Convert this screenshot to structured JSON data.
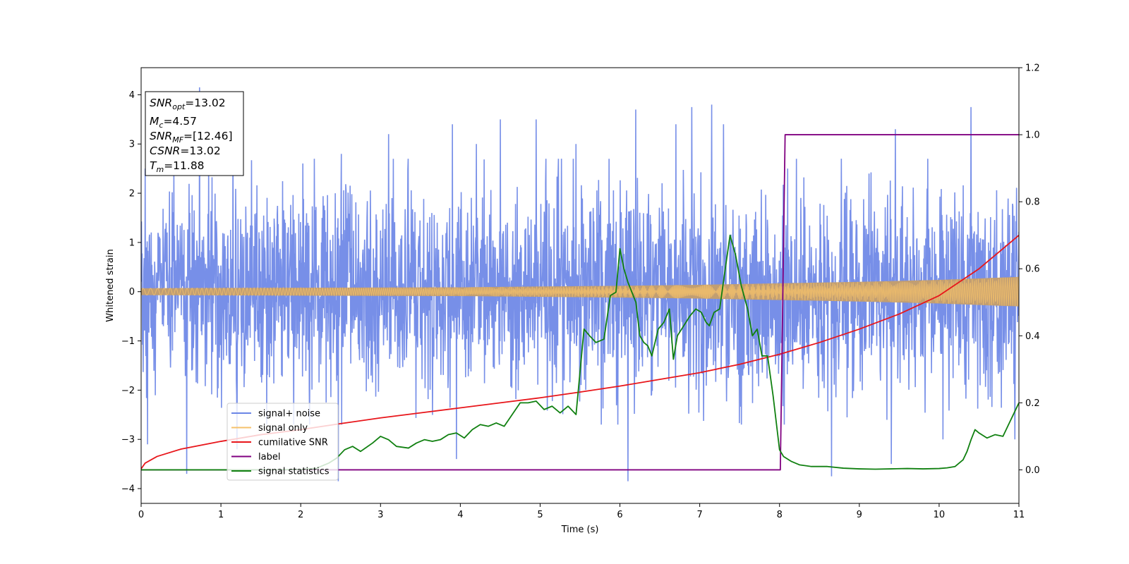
{
  "chart_data": {
    "type": "line",
    "xlabel": "Time (s)",
    "ylabel": "Whitened strain",
    "xlim": [
      0,
      11
    ],
    "ylim": [
      -4.3,
      4.55
    ],
    "y2lim": [
      -0.1,
      1.2
    ],
    "x_ticks": [
      0,
      1,
      2,
      3,
      4,
      5,
      6,
      7,
      8,
      9,
      10,
      11
    ],
    "y_ticks": [
      -4,
      -3,
      -2,
      -1,
      0,
      1,
      2,
      3,
      4
    ],
    "y2_ticks": [
      "0.0",
      "0.2",
      "0.4",
      "0.6",
      "0.8",
      "1.0",
      "1.2"
    ],
    "grid": false,
    "legend_position": "lower-left",
    "legend": [
      {
        "label": "signal+ noise",
        "color": "#6b86e6"
      },
      {
        "label": "signal only",
        "color": "#f5c26b"
      },
      {
        "label": "cumilative SNR",
        "color": "#e8161b"
      },
      {
        "label": "label",
        "color": "#800080"
      },
      {
        "label": "signal statistics",
        "color": "#108010"
      }
    ],
    "annotation": {
      "lines": [
        {
          "var": "SNR",
          "sub": "opt",
          "text": "=13.02"
        },
        {
          "var": "M",
          "sub": "c",
          "text": "=4.57"
        },
        {
          "var": "SNR",
          "sub": "MF",
          "text": "=[12.46]"
        },
        {
          "var": "CSNR",
          "sub": "",
          "text": "=13.02"
        },
        {
          "var": "T",
          "sub": "m",
          "text": "=11.88"
        }
      ]
    },
    "series": [
      {
        "name": "signal+ noise",
        "axis": "left",
        "style": "noise-band",
        "color": "#6b86e6",
        "noise_sigma": 1.0,
        "x_range": [
          0,
          11
        ],
        "spikes": [
          [
            0.05,
            2.5
          ],
          [
            0.08,
            -3.1
          ],
          [
            0.57,
            -3.7
          ],
          [
            0.73,
            4.15
          ],
          [
            1.15,
            3.1
          ],
          [
            1.2,
            -3.2
          ],
          [
            2.47,
            -3.85
          ],
          [
            2.51,
            2.8
          ],
          [
            3.1,
            3.2
          ],
          [
            3.9,
            3.4
          ],
          [
            3.95,
            -3.4
          ],
          [
            4.2,
            3.0
          ],
          [
            4.5,
            3.5
          ],
          [
            4.95,
            3.5
          ],
          [
            5.45,
            3.0
          ],
          [
            6.1,
            -3.85
          ],
          [
            6.2,
            3.7
          ],
          [
            6.7,
            3.4
          ],
          [
            6.9,
            3.75
          ],
          [
            7.15,
            3.8
          ],
          [
            7.3,
            3.4
          ],
          [
            8.1,
            2.5
          ],
          [
            8.65,
            -3.75
          ],
          [
            9.4,
            -3.5
          ],
          [
            9.45,
            3.3
          ],
          [
            10.05,
            -3.0
          ],
          [
            10.4,
            3.75
          ],
          [
            10.95,
            -3.0
          ]
        ]
      },
      {
        "name": "signal only",
        "axis": "left",
        "style": "chirp-envelope",
        "color": "#f5c26b",
        "amplitude": [
          [
            0,
            0.07
          ],
          [
            2,
            0.08
          ],
          [
            4,
            0.09
          ],
          [
            6,
            0.12
          ],
          [
            7,
            0.14
          ],
          [
            8,
            0.17
          ],
          [
            9,
            0.2
          ],
          [
            10,
            0.24
          ],
          [
            11,
            0.3
          ]
        ]
      },
      {
        "name": "cumilative SNR",
        "axis": "right",
        "style": "line",
        "color": "#e8161b",
        "x": [
          0,
          0.05,
          0.2,
          0.5,
          1,
          1.5,
          2,
          2.5,
          3,
          3.5,
          4,
          4.5,
          5,
          5.5,
          6,
          6.5,
          7,
          7.5,
          8,
          8.5,
          9,
          9.5,
          10,
          10.5,
          11
        ],
        "y": [
          0.003,
          0.02,
          0.04,
          0.062,
          0.085,
          0.105,
          0.12,
          0.138,
          0.155,
          0.17,
          0.185,
          0.2,
          0.215,
          0.232,
          0.25,
          0.27,
          0.29,
          0.315,
          0.345,
          0.38,
          0.42,
          0.465,
          0.52,
          0.6,
          0.7
        ]
      },
      {
        "name": "label",
        "axis": "right",
        "style": "line",
        "color": "#800080",
        "x": [
          0,
          8.01,
          8.07,
          11
        ],
        "y": [
          0,
          0,
          1,
          1
        ]
      },
      {
        "name": "signal statistics",
        "axis": "right",
        "style": "line",
        "color": "#108010",
        "x": [
          0,
          0.5,
          1,
          1.5,
          2,
          2.2,
          2.35,
          2.45,
          2.55,
          2.65,
          2.75,
          2.9,
          3.0,
          3.1,
          3.2,
          3.35,
          3.45,
          3.55,
          3.65,
          3.75,
          3.85,
          3.95,
          4.05,
          4.15,
          4.25,
          4.35,
          4.45,
          4.55,
          4.65,
          4.75,
          4.85,
          4.95,
          5.05,
          5.15,
          5.25,
          5.35,
          5.45,
          5.55,
          5.62,
          5.7,
          5.8,
          5.88,
          5.95,
          6.0,
          6.05,
          6.1,
          6.15,
          6.2,
          6.25,
          6.3,
          6.35,
          6.4,
          6.48,
          6.55,
          6.62,
          6.67,
          6.72,
          6.8,
          6.88,
          6.95,
          7.02,
          7.08,
          7.12,
          7.18,
          7.25,
          7.32,
          7.38,
          7.45,
          7.52,
          7.6,
          7.66,
          7.72,
          7.78,
          7.85,
          7.92,
          8.0,
          8.05,
          8.15,
          8.25,
          8.4,
          8.6,
          8.8,
          9.0,
          9.2,
          9.4,
          9.6,
          9.8,
          10.0,
          10.1,
          10.2,
          10.25,
          10.3,
          10.35,
          10.4,
          10.45,
          10.5,
          10.6,
          10.7,
          10.8,
          10.9,
          11.0
        ],
        "y": [
          0,
          0,
          0,
          0,
          0.001,
          0.005,
          0.02,
          0.035,
          0.06,
          0.07,
          0.055,
          0.08,
          0.1,
          0.09,
          0.07,
          0.065,
          0.08,
          0.09,
          0.085,
          0.09,
          0.105,
          0.11,
          0.095,
          0.12,
          0.135,
          0.13,
          0.14,
          0.13,
          0.165,
          0.2,
          0.2,
          0.205,
          0.18,
          0.19,
          0.17,
          0.19,
          0.165,
          0.42,
          0.4,
          0.38,
          0.39,
          0.52,
          0.53,
          0.66,
          0.6,
          0.56,
          0.53,
          0.5,
          0.4,
          0.38,
          0.37,
          0.34,
          0.42,
          0.44,
          0.48,
          0.33,
          0.4,
          0.43,
          0.46,
          0.48,
          0.47,
          0.44,
          0.43,
          0.47,
          0.48,
          0.6,
          0.7,
          0.64,
          0.55,
          0.48,
          0.4,
          0.42,
          0.34,
          0.34,
          0.22,
          0.06,
          0.04,
          0.025,
          0.015,
          0.01,
          0.01,
          0.005,
          0.003,
          0.002,
          0.003,
          0.004,
          0.003,
          0.004,
          0.006,
          0.01,
          0.02,
          0.03,
          0.055,
          0.09,
          0.12,
          0.11,
          0.095,
          0.105,
          0.1,
          0.15,
          0.2
        ]
      }
    ]
  }
}
